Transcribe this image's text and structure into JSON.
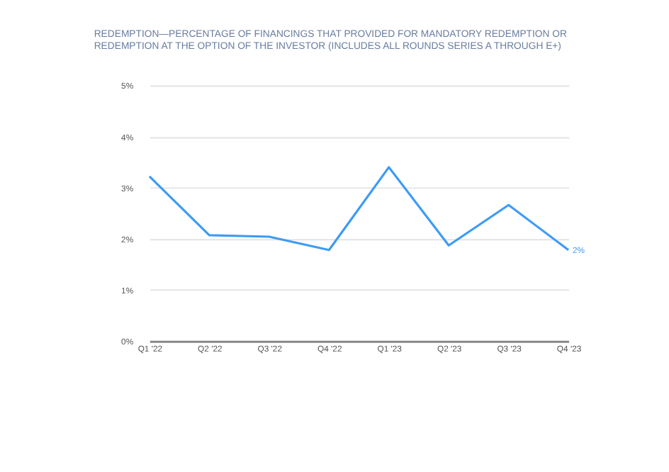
{
  "chart_data": {
    "type": "line",
    "title": "REDEMPTION—PERCENTAGE OF FINANCINGS THAT PROVIDED FOR MANDATORY REDEMPTION OR REDEMPTION AT THE OPTION OF THE INVESTOR (INCLUDES ALL ROUNDS SERIES A THROUGH E+)",
    "categories": [
      "Q1 '22",
      "Q2 '22",
      "Q3 '22",
      "Q4 '22",
      "Q1 '23",
      "Q2 '23",
      "Q3 '23",
      "Q4 '23"
    ],
    "series": [
      {
        "color": "#3d9bf5",
        "values": [
          3.22,
          2.07,
          2.04,
          1.78,
          3.4,
          1.87,
          2.66,
          1.78
        ],
        "value_labels": [
          null,
          null,
          null,
          null,
          null,
          null,
          null,
          "2%"
        ]
      }
    ],
    "ylim": [
      0,
      5
    ],
    "yticks": [
      {
        "value": 0,
        "label": "0%"
      },
      {
        "value": 1,
        "label": "1%"
      },
      {
        "value": 2,
        "label": "2%"
      },
      {
        "value": 3,
        "label": "3%"
      },
      {
        "value": 4,
        "label": "4%"
      },
      {
        "value": 5,
        "label": "5%"
      }
    ],
    "grid": "y",
    "marker": "none",
    "line_style": "solid"
  }
}
